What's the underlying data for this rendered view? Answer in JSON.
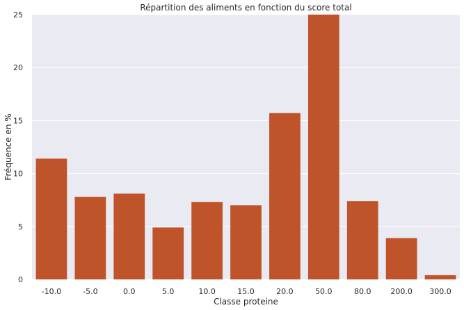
{
  "chart_data": {
    "type": "bar",
    "title": "Répartition des aliments en fonction du score total",
    "xlabel": "Classe proteine",
    "ylabel": "Fréquence en %",
    "categories": [
      "-10.0",
      "-5.0",
      "0.0",
      "5.0",
      "10.0",
      "15.0",
      "20.0",
      "50.0",
      "80.0",
      "200.0",
      "300.0"
    ],
    "values": [
      11.4,
      7.8,
      8.1,
      4.9,
      7.3,
      7.0,
      15.7,
      25.0,
      7.4,
      3.9,
      0.4
    ],
    "ylim": [
      0,
      25
    ],
    "yticks": [
      "0",
      "5",
      "10",
      "15",
      "20",
      "25"
    ],
    "grid": true,
    "colors": {
      "bar": "#bf532a",
      "background": "#eaeaf2",
      "grid": "#ffffff"
    }
  }
}
